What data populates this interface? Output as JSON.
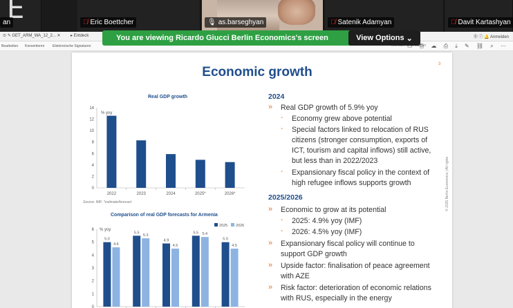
{
  "participants": [
    {
      "name": "an",
      "muted": false,
      "avatar_letter": "E"
    },
    {
      "name": "Eric Boettcher",
      "muted": true
    },
    {
      "name": "as.barseghyan",
      "muted": false,
      "video": true
    },
    {
      "name": "Satenik Adamyan",
      "muted": true
    },
    {
      "name": "Davit Kartashyan",
      "muted": true
    }
  ],
  "banner": {
    "text": "You are viewing  Ricardo Giucci Berlin Economics's screen",
    "view_options": "View Options"
  },
  "browser": {
    "tabs": [
      "GET_ARM_WA_12_2...",
      "Entdeck"
    ],
    "login": "Anmelden"
  },
  "menu": {
    "items": [
      "Bearbeiten",
      "Konvertieren",
      "Elektronische Signaturen"
    ],
    "search": "Text oder Tools suchen"
  },
  "slide": {
    "title": "Economic growth",
    "page_number": "3",
    "side_text": "© 2025 Berlin Economics | All rights",
    "colors": {
      "title": "#1f4e8c",
      "accent": "#e07a2e",
      "bar_dark": "#1f4e8c",
      "bar_light": "#8db3e2"
    }
  },
  "chart_data": [
    {
      "type": "bar",
      "title": "Real GDP growth",
      "ylabel": "% yoy",
      "categories": [
        "2022",
        "2023",
        "2024",
        "2025*",
        "2026*"
      ],
      "values": [
        12.6,
        8.3,
        5.9,
        4.9,
        4.5
      ],
      "ylim": [
        0,
        14
      ],
      "yticks": [
        0,
        2,
        4,
        6,
        8,
        10,
        12,
        14
      ],
      "source": "Source: IMF;  *estimate/forecast"
    },
    {
      "type": "bar",
      "title": "Comparison of real GDP forecasts for Armenia",
      "ylabel": "% yoy",
      "ylim": [
        0,
        6
      ],
      "yticks": [
        0,
        1,
        2,
        3,
        4,
        5,
        6
      ],
      "series": [
        {
          "name": "2025",
          "values": [
            5.0,
            5.5,
            4.9,
            5.5,
            5.0
          ],
          "labels": [
            "5.0",
            "5.5",
            "4.9",
            "5.5",
            "5.0"
          ]
        },
        {
          "name": "2026",
          "values": [
            4.6,
            5.3,
            4.5,
            5.4,
            4.5
          ],
          "labels": [
            "4.6",
            "5.3",
            "4.5",
            "5.4",
            "4.5"
          ]
        }
      ]
    }
  ],
  "text": {
    "s2024": "2024",
    "b_gdp": "Real GDP growth of 5.9% yoy",
    "sb_potential": "Economy grew above potential",
    "sb_special": "Special factors linked to relocation of RUS citizens (stronger consumption, exports of ICT, tourism and capital inflows) still active, but less than in 2022/2023",
    "sb_fiscal": "Expansionary fiscal policy in the context of high refugee inflows supports growth",
    "s2025": "2025/2026",
    "b_potential": "Economic to grow at its potential",
    "sb_2025": "2025: 4.9% yoy (IMF)",
    "sb_2026": "2026: 4.5% yoy (IMF)",
    "b_fiscal": "Expansionary fiscal policy will continue to support GDP growth",
    "b_upside": "Upside factor: finalisation of peace agreement with AZE",
    "b_risk": "Risk factor: deterioration of economic relations with RUS, especially in the energy"
  }
}
